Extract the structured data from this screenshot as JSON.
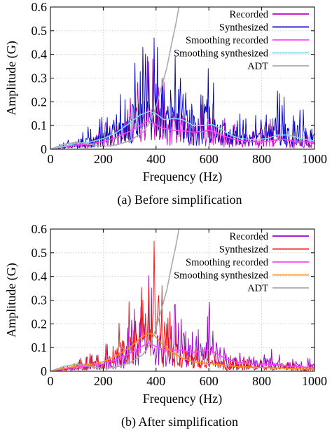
{
  "chart_data": [
    {
      "type": "line",
      "caption": "(a) Before simplification",
      "xlabel": "Frequency (Hz)",
      "ylabel": "Amplitude (G)",
      "xlim": [
        0,
        1000
      ],
      "ylim": [
        0,
        0.6
      ],
      "xticks": [
        "0",
        "200",
        "400",
        "600",
        "800",
        "1000"
      ],
      "yticks": [
        "0",
        "0.1",
        "0.2",
        "0.3",
        "0.4",
        "0.5",
        "0.6"
      ],
      "grid": true,
      "legend_position": "top-right",
      "series": [
        {
          "name": "Recorded",
          "color": "#c000c0",
          "style": "noisy",
          "x": [
            0,
            60,
            120,
            180,
            240,
            280,
            320,
            360,
            380,
            400,
            440,
            480,
            520,
            560,
            600,
            640,
            680,
            720,
            780,
            820,
            860,
            920,
            1000
          ],
          "y": [
            0.0,
            0.01,
            0.02,
            0.03,
            0.05,
            0.07,
            0.1,
            0.13,
            0.14,
            0.12,
            0.09,
            0.1,
            0.08,
            0.07,
            0.09,
            0.06,
            0.04,
            0.03,
            0.03,
            0.04,
            0.05,
            0.03,
            0.03
          ],
          "peaks": [
            [
              355,
              0.2
            ],
            [
              375,
              0.19
            ],
            [
              470,
              0.18
            ],
            [
              510,
              0.13
            ],
            [
              600,
              0.12
            ],
            [
              700,
              0.06
            ],
            [
              860,
              0.08
            ]
          ]
        },
        {
          "name": "Synthesized",
          "color": "#0000cc",
          "style": "noisy",
          "x": [
            0,
            60,
            120,
            180,
            240,
            280,
            320,
            360,
            380,
            400,
            440,
            480,
            520,
            560,
            600,
            640,
            680,
            720,
            780,
            820,
            860,
            920,
            1000
          ],
          "y": [
            0.0,
            0.02,
            0.03,
            0.04,
            0.07,
            0.1,
            0.14,
            0.17,
            0.18,
            0.15,
            0.12,
            0.14,
            0.12,
            0.1,
            0.12,
            0.09,
            0.06,
            0.05,
            0.05,
            0.07,
            0.09,
            0.07,
            0.05
          ],
          "peaks": [
            [
              350,
              0.43
            ],
            [
              372,
              0.37
            ],
            [
              392,
              0.47
            ],
            [
              472,
              0.39
            ],
            [
              492,
              0.3
            ],
            [
              598,
              0.34
            ],
            [
              618,
              0.28
            ],
            [
              850,
              0.12
            ],
            [
              880,
              0.1
            ]
          ]
        },
        {
          "name": "Smoothing recorded",
          "color": "#ff44ff",
          "style": "smooth",
          "x": [
            0,
            50,
            100,
            150,
            200,
            250,
            300,
            340,
            370,
            390,
            420,
            460,
            500,
            540,
            580,
            600,
            620,
            660,
            700,
            750,
            800,
            850,
            880,
            920,
            1000
          ],
          "y": [
            0.0,
            0.01,
            0.018,
            0.022,
            0.032,
            0.05,
            0.075,
            0.1,
            0.12,
            0.11,
            0.09,
            0.08,
            0.078,
            0.072,
            0.075,
            0.08,
            0.074,
            0.055,
            0.04,
            0.032,
            0.03,
            0.038,
            0.042,
            0.035,
            0.028
          ]
        },
        {
          "name": "Smoothing synthesized",
          "color": "#80d8e8",
          "style": "smooth",
          "x": [
            0,
            50,
            100,
            150,
            200,
            250,
            300,
            340,
            375,
            400,
            430,
            470,
            500,
            540,
            580,
            610,
            640,
            680,
            720,
            770,
            820,
            860,
            900,
            950,
            1000
          ],
          "y": [
            0.0,
            0.012,
            0.025,
            0.03,
            0.045,
            0.07,
            0.11,
            0.145,
            0.16,
            0.15,
            0.125,
            0.13,
            0.125,
            0.1,
            0.1,
            0.105,
            0.09,
            0.06,
            0.045,
            0.04,
            0.045,
            0.06,
            0.06,
            0.045,
            0.035
          ]
        },
        {
          "name": "ADT",
          "color": "#aaaaaa",
          "style": "smooth",
          "x": [
            0,
            50,
            100,
            150,
            200,
            250,
            300,
            350,
            380,
            400,
            420,
            440,
            460,
            475,
            490
          ],
          "y": [
            0.0,
            0.02,
            0.03,
            0.02,
            0.012,
            0.018,
            0.035,
            0.07,
            0.12,
            0.18,
            0.26,
            0.34,
            0.45,
            0.53,
            0.62
          ]
        }
      ]
    },
    {
      "type": "line",
      "caption": "(b) After simplification",
      "xlabel": "Frequency (Hz)",
      "ylabel": "Amplitude (G)",
      "xlim": [
        0,
        1000
      ],
      "ylim": [
        0,
        0.6
      ],
      "xticks": [
        "0",
        "200",
        "400",
        "600",
        "800",
        "1000"
      ],
      "yticks": [
        "0",
        "0.1",
        "0.2",
        "0.3",
        "0.4",
        "0.5",
        "0.6"
      ],
      "grid": true,
      "legend_position": "top-right",
      "series": [
        {
          "name": "Recorded",
          "color": "#9900cc",
          "style": "noisy",
          "x": [
            0,
            60,
            120,
            180,
            240,
            280,
            320,
            360,
            380,
            400,
            440,
            480,
            520,
            560,
            600,
            640,
            680,
            720,
            780,
            820,
            860,
            920,
            1000
          ],
          "y": [
            0.0,
            0.01,
            0.02,
            0.03,
            0.05,
            0.07,
            0.1,
            0.13,
            0.14,
            0.12,
            0.1,
            0.11,
            0.09,
            0.08,
            0.1,
            0.07,
            0.04,
            0.03,
            0.03,
            0.04,
            0.03,
            0.02,
            0.02
          ],
          "peaks": [
            [
              355,
              0.2
            ],
            [
              375,
              0.19
            ],
            [
              470,
              0.28
            ],
            [
              495,
              0.22
            ],
            [
              600,
              0.24
            ],
            [
              615,
              0.17
            ],
            [
              700,
              0.06
            ],
            [
              810,
              0.07
            ]
          ]
        },
        {
          "name": "Synthesized",
          "color": "#ee1111",
          "style": "noisy",
          "x": [
            0,
            60,
            120,
            180,
            240,
            280,
            320,
            360,
            380,
            400,
            440,
            480,
            520,
            560,
            600,
            640,
            680,
            720,
            780,
            820,
            860,
            920,
            1000
          ],
          "y": [
            0.0,
            0.01,
            0.02,
            0.03,
            0.06,
            0.09,
            0.13,
            0.17,
            0.18,
            0.15,
            0.1,
            0.07,
            0.05,
            0.04,
            0.035,
            0.03,
            0.025,
            0.02,
            0.018,
            0.016,
            0.015,
            0.012,
            0.01
          ],
          "peaks": [
            [
              350,
              0.3
            ],
            [
              372,
              0.36
            ],
            [
              392,
              0.55
            ],
            [
              410,
              0.32
            ],
            [
              440,
              0.2
            ]
          ]
        },
        {
          "name": "Smoothing recorded",
          "color": "#ff44ff",
          "style": "smooth",
          "x": [
            0,
            50,
            100,
            150,
            200,
            250,
            300,
            340,
            370,
            390,
            420,
            460,
            500,
            540,
            580,
            600,
            620,
            660,
            700,
            750,
            800,
            850,
            900,
            950,
            1000
          ],
          "y": [
            0.0,
            0.01,
            0.018,
            0.022,
            0.032,
            0.05,
            0.075,
            0.1,
            0.12,
            0.11,
            0.09,
            0.09,
            0.088,
            0.08,
            0.085,
            0.09,
            0.08,
            0.055,
            0.04,
            0.032,
            0.03,
            0.028,
            0.022,
            0.018,
            0.015
          ]
        },
        {
          "name": "Smoothing synthesized",
          "color": "#ff8c1a",
          "style": "smooth",
          "x": [
            0,
            50,
            100,
            150,
            200,
            250,
            300,
            340,
            370,
            390,
            420,
            460,
            500,
            540,
            580,
            620,
            660,
            700,
            750,
            800,
            850,
            900,
            950,
            1000
          ],
          "y": [
            0.0,
            0.012,
            0.022,
            0.028,
            0.04,
            0.065,
            0.1,
            0.14,
            0.16,
            0.155,
            0.12,
            0.08,
            0.055,
            0.04,
            0.035,
            0.03,
            0.025,
            0.02,
            0.018,
            0.016,
            0.014,
            0.012,
            0.01,
            0.009
          ]
        },
        {
          "name": "ADT",
          "color": "#aaaaaa",
          "style": "smooth",
          "x": [
            0,
            50,
            100,
            150,
            200,
            250,
            300,
            350,
            380,
            400,
            420,
            440,
            460,
            475,
            490
          ],
          "y": [
            0.0,
            0.02,
            0.03,
            0.02,
            0.012,
            0.018,
            0.035,
            0.07,
            0.12,
            0.18,
            0.26,
            0.34,
            0.45,
            0.53,
            0.62
          ]
        }
      ]
    }
  ]
}
